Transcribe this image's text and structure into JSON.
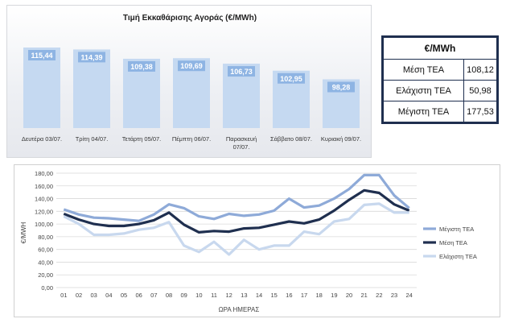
{
  "chart_data": [
    {
      "type": "bar",
      "title": "Τιμή Εκκαθάρισης Αγοράς (€/MWh)",
      "categories": [
        "Δευτέρα 03/07.",
        "Τρίτη 04/07.",
        "Τετάρτη 05/07.",
        "Πέμπτη 06/07.",
        "Παρασκευή 07/07.",
        "Σάββατο 08/07.",
        "Κυριακή 09/07."
      ],
      "values": [
        115.44,
        114.39,
        109.38,
        109.69,
        106.73,
        102.95,
        98.28
      ],
      "value_labels": [
        "115,44",
        "114,39",
        "109,38",
        "109,69",
        "106,73",
        "102,95",
        "98,28"
      ],
      "ylim": [
        0,
        125
      ],
      "colors": {
        "bar": "#c5d9f1",
        "label_box": "#8eb4e3",
        "label_text": "#ffffff"
      }
    },
    {
      "type": "line",
      "title": "",
      "xlabel": "ΩΡΑ ΗΜΕΡΑΣ",
      "ylabel": "€/MWH",
      "x": [
        "01",
        "02",
        "03",
        "04",
        "05",
        "06",
        "07",
        "08",
        "09",
        "10",
        "11",
        "12",
        "13",
        "14",
        "15",
        "16",
        "17",
        "18",
        "19",
        "20",
        "21",
        "22",
        "23",
        "24"
      ],
      "ylim": [
        0,
        180
      ],
      "yticks": [
        "0,00",
        "20,00",
        "40,00",
        "60,00",
        "80,00",
        "100,00",
        "120,00",
        "140,00",
        "160,00",
        "180,00"
      ],
      "grid": true,
      "legend": "right",
      "series": [
        {
          "name": "Μέγιστη ΤΕΑ",
          "color": "#8eaad8",
          "values": [
            123,
            115,
            110,
            109,
            107,
            105,
            115,
            131,
            125,
            112,
            108,
            116,
            113,
            115,
            121,
            140,
            126,
            129,
            140,
            155,
            177,
            177,
            145,
            125
          ]
        },
        {
          "name": "Μέση ΤΕΑ",
          "color": "#1f2f4f",
          "values": [
            116,
            107,
            100,
            97,
            97,
            100,
            106,
            118,
            99,
            87,
            89,
            88,
            93,
            94,
            99,
            104,
            101,
            107,
            121,
            138,
            153,
            149,
            131,
            121
          ]
        },
        {
          "name": "Ελάχιστη ΤΕΑ",
          "color": "#c8d8ee",
          "values": [
            112,
            100,
            83,
            83,
            85,
            91,
            94,
            103,
            66,
            56,
            72,
            52,
            75,
            60,
            66,
            66,
            88,
            84,
            104,
            108,
            130,
            132,
            118,
            118
          ]
        }
      ]
    }
  ],
  "summary_table": {
    "header": "€/MWh",
    "rows": [
      {
        "label": "Μέση ΤΕΑ",
        "value": "108,12"
      },
      {
        "label": "Ελάχιστη ΤΕΑ",
        "value": "50,98"
      },
      {
        "label": "Μέγιστη ΤΕΑ",
        "value": "177,53"
      }
    ]
  }
}
